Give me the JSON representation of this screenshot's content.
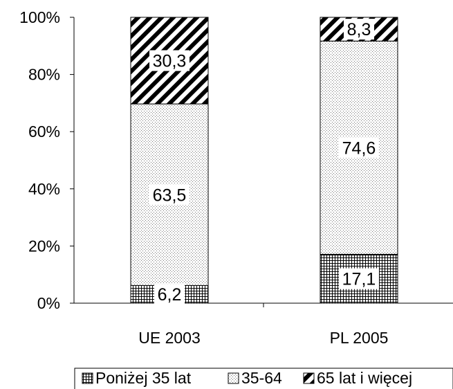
{
  "chart_data": {
    "type": "bar",
    "stacked": true,
    "percent_stacked": true,
    "categories": [
      "UE 2003",
      "PL 2005"
    ],
    "series": [
      {
        "name": "Poniżej 35 lat",
        "values": [
          6.2,
          17.1
        ],
        "labels": [
          "6,2",
          "17,1"
        ],
        "pattern": "grid",
        "color": "#000000"
      },
      {
        "name": "35-64",
        "values": [
          63.5,
          74.6
        ],
        "labels": [
          "63,5",
          "74,6"
        ],
        "pattern": "dots",
        "color": "#808080"
      },
      {
        "name": "65 lat i więcej",
        "values": [
          30.3,
          8.3
        ],
        "labels": [
          "30,3",
          "8,3"
        ],
        "pattern": "diagonal",
        "color": "#000000"
      }
    ],
    "yticks": [
      "0%",
      "20%",
      "40%",
      "60%",
      "80%",
      "100%"
    ],
    "ylim": [
      0,
      100
    ],
    "grid": false,
    "legend_position": "bottom"
  }
}
